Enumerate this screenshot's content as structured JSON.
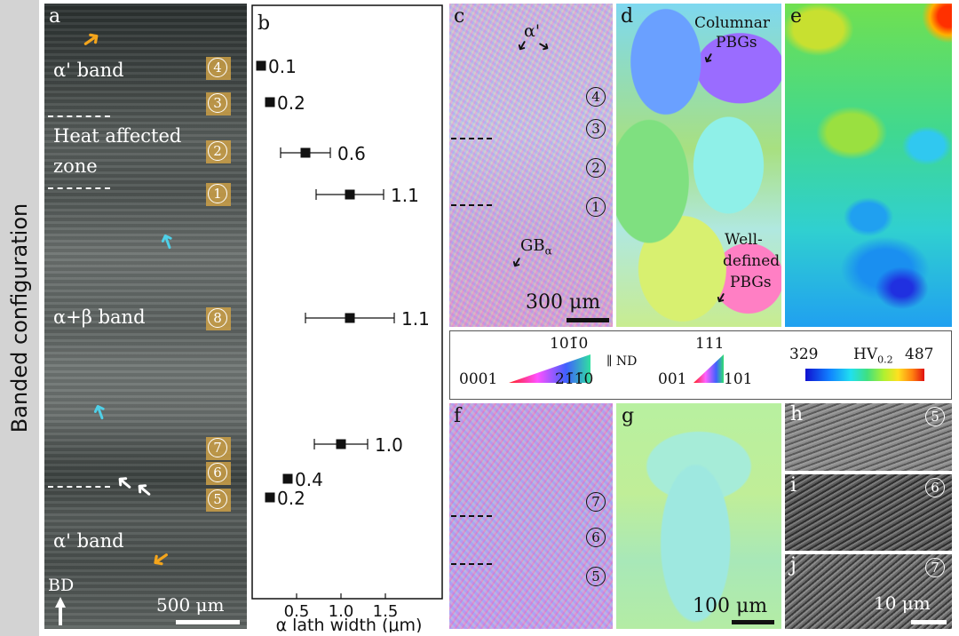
{
  "side_label": "Banded configuration",
  "panel_a": {
    "letter": "a",
    "band_top": "α' band",
    "haz": "Heat affected",
    "haz2": "zone",
    "band_mid": "α+β band",
    "band_bottom": "α' band",
    "bd": "BD",
    "scale": "500 μm",
    "markers": [
      "4",
      "3",
      "2",
      "1",
      "8",
      "7",
      "6",
      "5"
    ]
  },
  "panel_b": {
    "letter": "b",
    "xlabel": "α lath width (μm)",
    "xticks": [
      "0.5",
      "1.0",
      "1.5"
    ]
  },
  "chart_data": {
    "type": "scatter",
    "xlabel": "α lath width (μm)",
    "xlim": [
      0,
      2.0
    ],
    "points": [
      {
        "x": 0.1,
        "err": 0,
        "label": "0.1"
      },
      {
        "x": 0.2,
        "err": 0,
        "label": "0.2"
      },
      {
        "x": 0.6,
        "err": 0.28,
        "label": "0.6"
      },
      {
        "x": 1.1,
        "err": 0.38,
        "label": "1.1"
      },
      {
        "x": 1.1,
        "err": 0.5,
        "label": "1.1"
      },
      {
        "x": 1.0,
        "err": 0.3,
        "label": "1.0"
      },
      {
        "x": 0.4,
        "err": 0,
        "label": "0.4"
      },
      {
        "x": 0.2,
        "err": 0,
        "label": "0.2"
      }
    ]
  },
  "panel_c": {
    "letter": "c",
    "alpha_prime": "α'",
    "gb": "GB",
    "gb_sub": "α",
    "scale": "300 μm",
    "markers": [
      "4",
      "3",
      "2",
      "1"
    ]
  },
  "panel_d": {
    "letter": "d",
    "columnar": "Columnar",
    "pbgs1": "PBGs",
    "well": "Well-",
    "defined": "defined",
    "pbgs2": "PBGs"
  },
  "panel_e": {
    "letter": "e"
  },
  "legend": {
    "hex_top": "101̄0",
    "hex_left": "0001",
    "hex_right": "21̄1̄0",
    "nd": "∥ ND",
    "cub_top": "111",
    "cub_left": "001",
    "cub_right": "101",
    "hv_min": "329",
    "hv_label": "HV",
    "hv_sub": "0.2",
    "hv_max": "487"
  },
  "panel_f": {
    "letter": "f",
    "markers": [
      "7",
      "6",
      "5"
    ]
  },
  "panel_g": {
    "letter": "g",
    "scale": "100 μm"
  },
  "panel_h": {
    "letter": "h",
    "marker": "5"
  },
  "panel_i": {
    "letter": "i",
    "marker": "6"
  },
  "panel_j": {
    "letter": "j",
    "marker": "7",
    "scale": "10 μm"
  }
}
